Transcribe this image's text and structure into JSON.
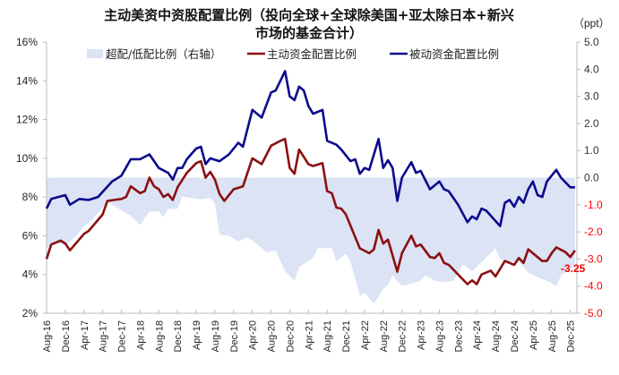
{
  "chart_data": {
    "type": "line",
    "title_lines": [
      "主动美资中资股配置比例（投向全球+全球除美国+亚太除日本+新兴",
      "市场的基金合计）"
    ],
    "left_axis": {
      "ylim": [
        2,
        16
      ],
      "ticks": [
        "2%",
        "4%",
        "6%",
        "8%",
        "10%",
        "12%",
        "14%",
        "16%"
      ],
      "tick_values": [
        2,
        4,
        6,
        8,
        10,
        12,
        14,
        16
      ]
    },
    "right_axis": {
      "unit_label": "（ppt）",
      "ylim": [
        -5,
        5
      ],
      "ticks": [
        "-5.0",
        "-4.0",
        "-3.0",
        "-2.0",
        "-1.0",
        "0.0",
        "1.0",
        "2.0",
        "3.0",
        "4.0",
        "5.0"
      ],
      "tick_values": [
        -5,
        -4,
        -3,
        -2,
        -1,
        0,
        1,
        2,
        3,
        4,
        5
      ],
      "positive_color": "#333333",
      "negative_color": "#ff0000"
    },
    "x_ticks": [
      "Aug-16",
      "Dec-16",
      "Apr-17",
      "Aug-17",
      "Dec-17",
      "Apr-18",
      "Aug-18",
      "Dec-18",
      "Apr-19",
      "Aug-19",
      "Dec-19",
      "Apr-20",
      "Aug-20",
      "Dec-20",
      "Apr-21",
      "Aug-21",
      "Dec-21",
      "Apr-22",
      "Aug-22",
      "Dec-22",
      "Apr-23",
      "Aug-23",
      "Dec-23",
      "Apr-24",
      "Aug-24",
      "Dec-24",
      "Apr-25",
      "Aug-25",
      "Dec-25"
    ],
    "legend_placement": "top-center",
    "grid": false,
    "annotation": {
      "text": "-3.25",
      "color": "#ff0000"
    },
    "series": [
      {
        "name": "超配/低配比例（右轴）",
        "type": "area",
        "axis": "right",
        "color": "#dbe3f4",
        "points": [
          [
            "2016-08",
            -2.6
          ],
          [
            "2016-10",
            -2.4
          ],
          [
            "2016-12",
            -2.5
          ],
          [
            "2017-02",
            -2.2
          ],
          [
            "2017-04",
            -1.8
          ],
          [
            "2017-06",
            -1.5
          ],
          [
            "2017-08",
            -1.1
          ],
          [
            "2017-09",
            -0.9
          ],
          [
            "2017-12",
            -1.2
          ],
          [
            "2018-02",
            -1.4
          ],
          [
            "2018-04",
            -1.75
          ],
          [
            "2018-06",
            -1.25
          ],
          [
            "2018-08",
            -1.25
          ],
          [
            "2018-09",
            -1.45
          ],
          [
            "2018-10",
            -1.15
          ],
          [
            "2018-12",
            -1.15
          ],
          [
            "2019-01",
            -0.7
          ],
          [
            "2019-05",
            -0.8
          ],
          [
            "2019-07",
            -0.75
          ],
          [
            "2019-08",
            -0.95
          ],
          [
            "2019-09",
            -2.1
          ],
          [
            "2019-11",
            -2.15
          ],
          [
            "2020-01",
            -2.35
          ],
          [
            "2020-03",
            -2.2
          ],
          [
            "2020-05",
            -2.45
          ],
          [
            "2020-07",
            -2.75
          ],
          [
            "2020-09",
            -2.7
          ],
          [
            "2020-11",
            -3.45
          ],
          [
            "2021-01",
            -3.8
          ],
          [
            "2021-02",
            -3.3
          ],
          [
            "2021-05",
            -2.95
          ],
          [
            "2021-06",
            -2.6
          ],
          [
            "2021-09",
            -2.6
          ],
          [
            "2021-10",
            -3.1
          ],
          [
            "2021-12",
            -2.8
          ],
          [
            "2022-01",
            -3.1
          ],
          [
            "2022-03",
            -4.35
          ],
          [
            "2022-04",
            -4.25
          ],
          [
            "2022-05",
            -4.45
          ],
          [
            "2022-06",
            -4.65
          ],
          [
            "2022-08",
            -4.1
          ],
          [
            "2022-09",
            -3.95
          ],
          [
            "2022-10",
            -3.6
          ],
          [
            "2022-12",
            -4.0
          ],
          [
            "2023-04",
            -3.8
          ],
          [
            "2023-05",
            -3.6
          ],
          [
            "2023-07",
            -3.8
          ],
          [
            "2023-09",
            -3.85
          ],
          [
            "2023-11",
            -3.8
          ],
          [
            "2024-01",
            -3.2
          ],
          [
            "2024-03",
            -3.45
          ],
          [
            "2024-06",
            -2.95
          ],
          [
            "2024-08",
            -2.6
          ],
          [
            "2024-09",
            -3.0
          ],
          [
            "2024-11",
            -3.1
          ],
          [
            "2025-01",
            -3.1
          ],
          [
            "2025-03",
            -3.5
          ],
          [
            "2025-06",
            -3.75
          ],
          [
            "2025-07",
            -3.8
          ],
          [
            "2025-09",
            -4.0
          ],
          [
            "2025-10",
            -3.6
          ],
          [
            "2026-01",
            -3.25
          ]
        ]
      },
      {
        "name": "主动资金配置比例",
        "type": "line",
        "axis": "left",
        "color": "#8b1010",
        "points": [
          [
            "2016-08",
            4.8
          ],
          [
            "2016-09",
            5.55
          ],
          [
            "2016-11",
            5.75
          ],
          [
            "2016-12",
            5.6
          ],
          [
            "2017-01",
            5.25
          ],
          [
            "2017-04",
            6.1
          ],
          [
            "2017-05",
            6.25
          ],
          [
            "2017-08",
            7.1
          ],
          [
            "2017-09",
            7.8
          ],
          [
            "2017-12",
            7.9
          ],
          [
            "2018-01",
            8.0
          ],
          [
            "2018-02",
            8.55
          ],
          [
            "2018-04",
            8.2
          ],
          [
            "2018-05",
            8.3
          ],
          [
            "2018-06",
            9.0
          ],
          [
            "2018-07",
            8.55
          ],
          [
            "2018-08",
            8.4
          ],
          [
            "2018-09",
            8.0
          ],
          [
            "2018-10",
            8.15
          ],
          [
            "2018-11",
            7.85
          ],
          [
            "2018-12",
            8.5
          ],
          [
            "2019-02",
            9.25
          ],
          [
            "2019-04",
            9.75
          ],
          [
            "2019-05",
            9.85
          ],
          [
            "2019-06",
            9.0
          ],
          [
            "2019-07",
            9.3
          ],
          [
            "2019-08",
            8.9
          ],
          [
            "2019-09",
            8.15
          ],
          [
            "2019-10",
            7.8
          ],
          [
            "2019-12",
            8.4
          ],
          [
            "2020-02",
            8.55
          ],
          [
            "2020-04",
            10.0
          ],
          [
            "2020-06",
            9.7
          ],
          [
            "2020-08",
            10.65
          ],
          [
            "2020-10",
            10.9
          ],
          [
            "2020-11",
            11.0
          ],
          [
            "2020-12",
            9.5
          ],
          [
            "2021-01",
            9.2
          ],
          [
            "2021-02",
            10.45
          ],
          [
            "2021-04",
            9.7
          ],
          [
            "2021-05",
            9.6
          ],
          [
            "2021-07",
            9.75
          ],
          [
            "2021-08",
            8.3
          ],
          [
            "2021-09",
            8.2
          ],
          [
            "2021-10",
            7.45
          ],
          [
            "2021-11",
            7.4
          ],
          [
            "2021-12",
            7.1
          ],
          [
            "2022-03",
            5.35
          ],
          [
            "2022-05",
            5.1
          ],
          [
            "2022-06",
            5.3
          ],
          [
            "2022-07",
            6.3
          ],
          [
            "2022-08",
            5.6
          ],
          [
            "2022-09",
            5.8
          ],
          [
            "2022-11",
            4.15
          ],
          [
            "2022-12",
            5.1
          ],
          [
            "2023-02",
            6.0
          ],
          [
            "2023-03",
            5.45
          ],
          [
            "2023-04",
            5.55
          ],
          [
            "2023-06",
            4.9
          ],
          [
            "2023-07",
            4.85
          ],
          [
            "2023-08",
            5.1
          ],
          [
            "2023-09",
            4.6
          ],
          [
            "2023-10",
            4.5
          ],
          [
            "2024-02",
            3.5
          ],
          [
            "2024-03",
            3.7
          ],
          [
            "2024-04",
            3.5
          ],
          [
            "2024-05",
            4.0
          ],
          [
            "2024-07",
            4.2
          ],
          [
            "2024-08",
            3.9
          ],
          [
            "2024-10",
            4.7
          ],
          [
            "2024-12",
            4.5
          ],
          [
            "2025-01",
            4.85
          ],
          [
            "2025-02",
            4.6
          ],
          [
            "2025-03",
            5.3
          ],
          [
            "2025-06",
            4.7
          ],
          [
            "2025-07",
            4.7
          ],
          [
            "2025-08",
            5.1
          ],
          [
            "2025-09",
            5.4
          ],
          [
            "2025-11",
            5.15
          ],
          [
            "2025-12",
            4.9
          ],
          [
            "2026-01",
            5.25
          ]
        ]
      },
      {
        "name": "被动资金配置比例",
        "type": "line",
        "axis": "left",
        "color": "#0a0a8c",
        "points": [
          [
            "2016-08",
            7.4
          ],
          [
            "2016-09",
            7.9
          ],
          [
            "2016-12",
            8.1
          ],
          [
            "2017-01",
            7.6
          ],
          [
            "2017-03",
            7.9
          ],
          [
            "2017-05",
            7.85
          ],
          [
            "2017-07",
            8.0
          ],
          [
            "2017-10",
            8.8
          ],
          [
            "2017-12",
            9.1
          ],
          [
            "2018-02",
            9.95
          ],
          [
            "2018-04",
            9.95
          ],
          [
            "2018-06",
            10.2
          ],
          [
            "2018-08",
            9.5
          ],
          [
            "2018-10",
            9.25
          ],
          [
            "2018-11",
            8.9
          ],
          [
            "2018-12",
            9.5
          ],
          [
            "2019-01",
            9.5
          ],
          [
            "2019-02",
            9.95
          ],
          [
            "2019-04",
            10.5
          ],
          [
            "2019-05",
            10.6
          ],
          [
            "2019-06",
            9.7
          ],
          [
            "2019-07",
            10.0
          ],
          [
            "2019-09",
            9.85
          ],
          [
            "2019-11",
            10.2
          ],
          [
            "2020-01",
            10.8
          ],
          [
            "2020-02",
            10.6
          ],
          [
            "2020-04",
            12.5
          ],
          [
            "2020-06",
            12.1
          ],
          [
            "2020-08",
            13.4
          ],
          [
            "2020-09",
            13.5
          ],
          [
            "2020-11",
            14.5
          ],
          [
            "2020-12",
            13.2
          ],
          [
            "2021-01",
            13.0
          ],
          [
            "2021-02",
            13.7
          ],
          [
            "2021-03",
            13.5
          ],
          [
            "2021-04",
            12.7
          ],
          [
            "2021-05",
            12.3
          ],
          [
            "2021-07",
            12.5
          ],
          [
            "2021-08",
            10.9
          ],
          [
            "2021-10",
            10.7
          ],
          [
            "2021-11",
            10.45
          ],
          [
            "2022-01",
            9.85
          ],
          [
            "2022-02",
            9.95
          ],
          [
            "2022-03",
            9.2
          ],
          [
            "2022-04",
            9.5
          ],
          [
            "2022-05",
            9.4
          ],
          [
            "2022-07",
            11.0
          ],
          [
            "2022-08",
            9.5
          ],
          [
            "2022-09",
            9.9
          ],
          [
            "2022-10",
            9.5
          ],
          [
            "2022-11",
            7.8
          ],
          [
            "2022-12",
            9.0
          ],
          [
            "2023-02",
            9.8
          ],
          [
            "2023-03",
            9.25
          ],
          [
            "2023-04",
            9.35
          ],
          [
            "2023-06",
            8.4
          ],
          [
            "2023-08",
            8.8
          ],
          [
            "2023-09",
            8.4
          ],
          [
            "2023-10",
            8.3
          ],
          [
            "2023-12",
            7.6
          ],
          [
            "2024-02",
            6.7
          ],
          [
            "2024-03",
            7.0
          ],
          [
            "2024-04",
            6.85
          ],
          [
            "2024-05",
            7.4
          ],
          [
            "2024-06",
            7.3
          ],
          [
            "2024-09",
            6.5
          ],
          [
            "2024-10",
            7.7
          ],
          [
            "2024-11",
            7.85
          ],
          [
            "2024-12",
            7.5
          ],
          [
            "2025-01",
            8.0
          ],
          [
            "2025-02",
            7.7
          ],
          [
            "2025-03",
            8.4
          ],
          [
            "2025-04",
            8.8
          ],
          [
            "2025-05",
            8.1
          ],
          [
            "2025-06",
            8.0
          ],
          [
            "2025-07",
            8.8
          ],
          [
            "2025-09",
            9.4
          ],
          [
            "2025-10",
            9.0
          ],
          [
            "2025-12",
            8.5
          ],
          [
            "2026-01",
            8.5
          ]
        ]
      }
    ]
  }
}
